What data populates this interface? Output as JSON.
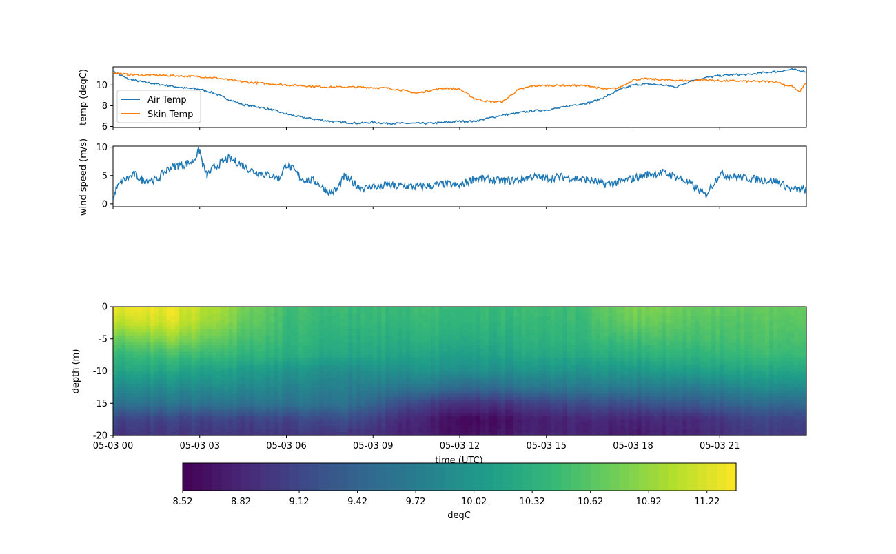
{
  "chart_data": [
    {
      "type": "line",
      "ylabel": "temp (degC)",
      "ylim": [
        5.9,
        11.75
      ],
      "yticks": [
        6,
        8,
        10
      ],
      "xlim_hours": [
        0,
        24
      ],
      "legend_position": "center-left",
      "series": [
        {
          "name": "Air Temp",
          "color": "#1f77b4",
          "x": [
            0,
            0.5,
            1,
            1.5,
            2,
            2.5,
            3,
            3.5,
            4,
            4.5,
            5,
            5.5,
            6,
            6.5,
            7,
            7.5,
            8,
            8.5,
            9,
            9.5,
            10,
            10.5,
            11,
            11.5,
            12,
            12.5,
            13,
            13.5,
            14,
            14.5,
            15,
            15.5,
            16,
            16.5,
            17,
            17.5,
            18,
            18.5,
            19,
            19.5,
            20,
            20.5,
            21,
            21.5,
            22,
            22.5,
            23,
            23.5,
            24
          ],
          "y": [
            11.3,
            10.6,
            10.3,
            10.1,
            9.9,
            9.7,
            9.6,
            9.2,
            8.6,
            8.1,
            7.9,
            7.6,
            7.2,
            6.9,
            6.7,
            6.5,
            6.4,
            6.3,
            6.4,
            6.3,
            6.3,
            6.3,
            6.3,
            6.4,
            6.5,
            6.5,
            6.8,
            7.1,
            7.3,
            7.5,
            7.6,
            7.8,
            8.1,
            8.3,
            8.8,
            9.5,
            10.0,
            10.1,
            10.0,
            9.8,
            10.4,
            10.7,
            10.9,
            11.0,
            11.0,
            11.2,
            11.3,
            11.5,
            11.3
          ]
        },
        {
          "name": "Skin Temp",
          "color": "#ff7f0e",
          "x": [
            0,
            0.5,
            1,
            1.5,
            2,
            2.5,
            3,
            3.5,
            4,
            4.5,
            5,
            5.5,
            6,
            6.5,
            7,
            7.5,
            8,
            8.5,
            9,
            9.5,
            10,
            10.5,
            11,
            11.5,
            12,
            12.5,
            13,
            13.5,
            14,
            14.5,
            15,
            15.5,
            16,
            16.5,
            17,
            17.5,
            18,
            18.5,
            19,
            19.5,
            20,
            20.5,
            21,
            21.5,
            22,
            22.5,
            23,
            23.25,
            23.5,
            23.75,
            24
          ],
          "y": [
            11.2,
            11.0,
            10.95,
            10.95,
            10.9,
            10.85,
            10.8,
            10.7,
            10.5,
            10.3,
            10.2,
            10.1,
            10.0,
            9.95,
            9.85,
            9.8,
            9.8,
            9.8,
            9.75,
            9.7,
            9.5,
            9.2,
            9.5,
            9.7,
            9.6,
            8.7,
            8.4,
            8.4,
            9.5,
            9.9,
            9.95,
            9.95,
            9.95,
            9.9,
            9.6,
            9.7,
            10.5,
            10.6,
            10.5,
            10.45,
            10.4,
            10.5,
            10.4,
            10.4,
            10.35,
            10.35,
            10.3,
            10.0,
            9.9,
            9.3,
            10.3
          ]
        }
      ]
    },
    {
      "type": "line",
      "ylabel": "wind speed (m/s)",
      "ylim": [
        -0.5,
        10.2
      ],
      "yticks": [
        0,
        5,
        10
      ],
      "xlim_hours": [
        0,
        24
      ],
      "series": [
        {
          "color": "#1f77b4",
          "x": [
            0,
            0.1,
            0.3,
            0.5,
            0.75,
            1,
            1.25,
            1.5,
            1.75,
            2,
            2.25,
            2.5,
            2.75,
            3,
            3.1,
            3.25,
            3.5,
            3.75,
            4,
            4.25,
            4.5,
            4.75,
            5,
            5.25,
            5.5,
            5.75,
            6,
            6.25,
            6.5,
            6.75,
            7,
            7.25,
            7.5,
            7.75,
            8,
            8.25,
            8.5,
            8.75,
            9,
            9.25,
            9.5,
            9.75,
            10,
            10.5,
            11,
            11.5,
            12,
            12.5,
            13,
            13.5,
            14,
            14.5,
            15,
            15.5,
            16,
            16.5,
            17,
            17.5,
            18,
            18.5,
            19,
            19.5,
            20,
            20.5,
            21,
            21.5,
            22,
            22.5,
            23,
            23.5,
            24
          ],
          "y": [
            0.5,
            2.5,
            4.0,
            4.5,
            5.2,
            4.2,
            4.3,
            4.2,
            5.5,
            6.5,
            6.8,
            7.0,
            7.5,
            9.5,
            7.0,
            5.0,
            6.5,
            7.2,
            8.0,
            7.5,
            6.8,
            6.0,
            5.5,
            5.2,
            5.0,
            4.5,
            7.0,
            6.0,
            4.5,
            4.2,
            4.0,
            3.0,
            2.0,
            2.5,
            4.8,
            4.0,
            3.0,
            2.8,
            3.2,
            2.8,
            3.5,
            3.0,
            3.2,
            3.0,
            3.2,
            3.5,
            3.2,
            4.5,
            4.3,
            4.0,
            4.2,
            4.8,
            4.5,
            4.8,
            4.5,
            4.2,
            3.5,
            3.8,
            4.5,
            5.2,
            5.5,
            4.8,
            3.5,
            1.5,
            5.3,
            4.8,
            4.5,
            4.2,
            4.0,
            2.5,
            2.5
          ]
        }
      ]
    },
    {
      "type": "heatmap",
      "ylabel": "depth (m)",
      "xlabel": "time (UTC)",
      "ylim": [
        -20,
        0
      ],
      "yticks": [
        0,
        -5,
        -10,
        -15,
        -20
      ],
      "xlim_hours": [
        0,
        24
      ],
      "xticks_hours": [
        0,
        3,
        6,
        9,
        12,
        15,
        18,
        21
      ],
      "xtick_labels": [
        "05-03 00",
        "05-03 03",
        "05-03 06",
        "05-03 09",
        "05-03 12",
        "05-03 15",
        "05-03 18",
        "05-03 21"
      ],
      "colorbar": {
        "label": "degC",
        "vmin": 8.52,
        "vmax": 11.37,
        "ticks": [
          8.52,
          8.82,
          9.12,
          9.42,
          9.72,
          10.02,
          10.32,
          10.62,
          10.92,
          11.22
        ],
        "tick_labels": [
          "8.52",
          "8.82",
          "9.12",
          "9.42",
          "9.72",
          "10.02",
          "10.32",
          "10.62",
          "10.92",
          "11.22"
        ]
      },
      "profile_times_hours": [
        0,
        2,
        4,
        6,
        8,
        9.5,
        11,
        12.5,
        14,
        16,
        18,
        20,
        22,
        24
      ],
      "profile_depths_m": [
        0,
        -2.5,
        -5,
        -7.5,
        -10,
        -12.5,
        -15,
        -17.5,
        -20
      ],
      "profiles_degC": [
        [
          11.3,
          11.1,
          10.7,
          10.4,
          10.2,
          9.9,
          9.6,
          9.1,
          8.95
        ],
        [
          11.3,
          11.2,
          10.9,
          10.5,
          10.2,
          9.9,
          9.6,
          9.1,
          8.95
        ],
        [
          10.9,
          10.8,
          10.6,
          10.4,
          10.1,
          9.9,
          9.6,
          9.1,
          8.95
        ],
        [
          10.5,
          10.45,
          10.4,
          10.3,
          10.0,
          9.8,
          9.6,
          9.1,
          8.95
        ],
        [
          10.45,
          10.4,
          10.3,
          10.2,
          9.9,
          9.75,
          9.6,
          9.2,
          8.95
        ],
        [
          10.45,
          10.4,
          10.3,
          10.2,
          9.95,
          9.7,
          9.3,
          8.95,
          8.85
        ],
        [
          10.45,
          10.4,
          10.3,
          10.15,
          9.95,
          9.6,
          9.0,
          8.7,
          8.7
        ],
        [
          10.45,
          10.4,
          10.3,
          10.15,
          9.95,
          9.5,
          8.95,
          8.6,
          8.65
        ],
        [
          10.45,
          10.4,
          10.3,
          10.2,
          9.95,
          9.6,
          9.0,
          8.7,
          8.75
        ],
        [
          10.5,
          10.45,
          10.4,
          10.25,
          10.0,
          9.7,
          9.2,
          8.85,
          8.8
        ],
        [
          10.8,
          10.7,
          10.5,
          10.3,
          10.0,
          9.7,
          9.2,
          8.8,
          8.7
        ],
        [
          10.7,
          10.6,
          10.5,
          10.35,
          10.1,
          9.7,
          9.3,
          8.85,
          8.8
        ],
        [
          10.7,
          10.6,
          10.55,
          10.45,
          10.2,
          9.9,
          9.5,
          9.1,
          9.0
        ],
        [
          10.7,
          10.65,
          10.55,
          10.45,
          10.2,
          9.9,
          9.5,
          9.1,
          9.0
        ]
      ]
    }
  ]
}
